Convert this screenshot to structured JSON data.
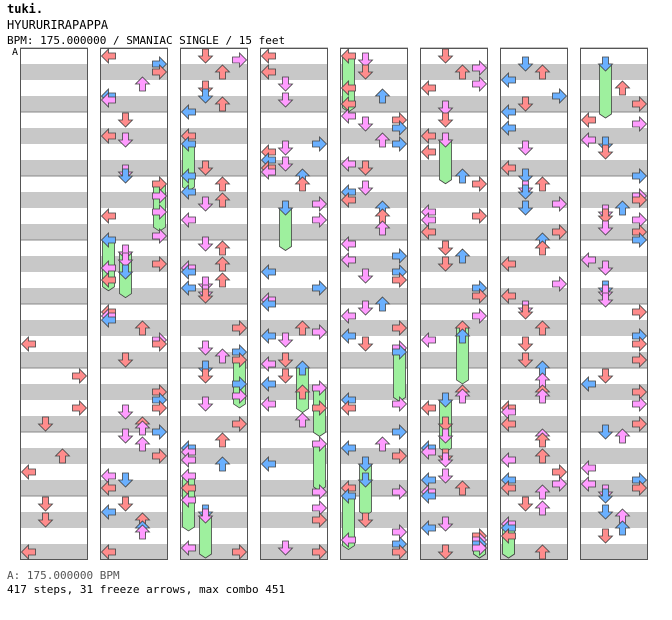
{
  "header": {
    "artist": "tuki.",
    "title": "HYURURIRAPAPPA",
    "info": "BPM: 175.000000 / SMANIAC SINGLE / 15 feet"
  },
  "chart_bpm_label": "A",
  "footer": {
    "bpm_line": "A: 175.000000 BPM",
    "stats": "417 steps, 31 freeze arrows, max combo 451"
  },
  "colors": {
    "quarter": "#ff8c8c",
    "eighth": "#6ab0ff",
    "sixteenth": "#ff9cff",
    "freeze": "#9ef09e",
    "stripe": "#c8c8c8"
  },
  "chart_data": {
    "type": "step-chart",
    "lanes": [
      "left",
      "down",
      "up",
      "right"
    ],
    "columns": 8,
    "measures_per_column": 8,
    "notes_per_measure": 4,
    "freeze_count": 31,
    "step_count": 417,
    "max_combo": 451
  }
}
